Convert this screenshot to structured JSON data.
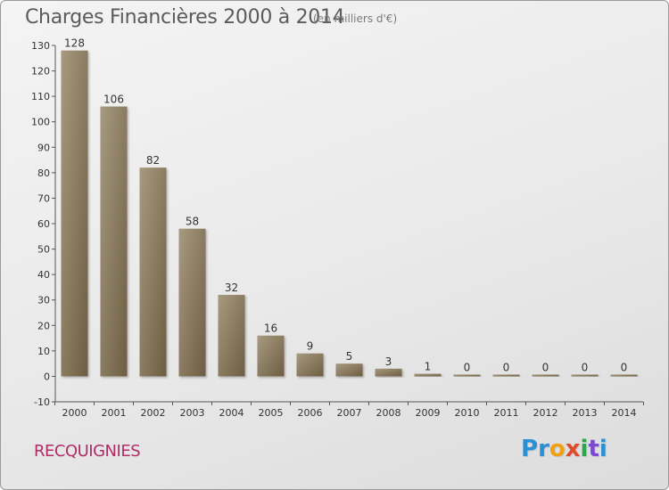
{
  "title": "Charges Financières 2000 à 2014",
  "subtitle": "(en milliers d'€)",
  "commune": "RECQUIGNIES",
  "logo": {
    "letters": [
      "P",
      "r",
      "o",
      "x",
      "i",
      "t",
      "i"
    ],
    "colors": [
      "#2a8fd4",
      "#2a8fd4",
      "#f0a010",
      "#e04a2a",
      "#2aa84a",
      "#7a4ad0",
      "#2a8fd4"
    ]
  },
  "colors": {
    "bar_top": "#a89a7e",
    "bar_bottom": "#6d5e43",
    "axis": "#555555",
    "grid": "#d8d8d8"
  },
  "chart_data": {
    "type": "bar",
    "categories": [
      "2000",
      "2001",
      "2002",
      "2003",
      "2004",
      "2005",
      "2006",
      "2007",
      "2008",
      "2009",
      "2010",
      "2011",
      "2012",
      "2013",
      "2014"
    ],
    "values": [
      128,
      106,
      82,
      58,
      32,
      16,
      9,
      5,
      3,
      1,
      0,
      0,
      0,
      0,
      0
    ],
    "title": "Charges Financières 2000 à 2014",
    "subtitle": "(en milliers d'€)",
    "xlabel": "",
    "ylabel": "",
    "ylim": [
      -10,
      130
    ],
    "yticks": [
      -10,
      0,
      10,
      20,
      30,
      40,
      50,
      60,
      70,
      80,
      90,
      100,
      110,
      120,
      130
    ],
    "grid": false,
    "legend": "none"
  }
}
